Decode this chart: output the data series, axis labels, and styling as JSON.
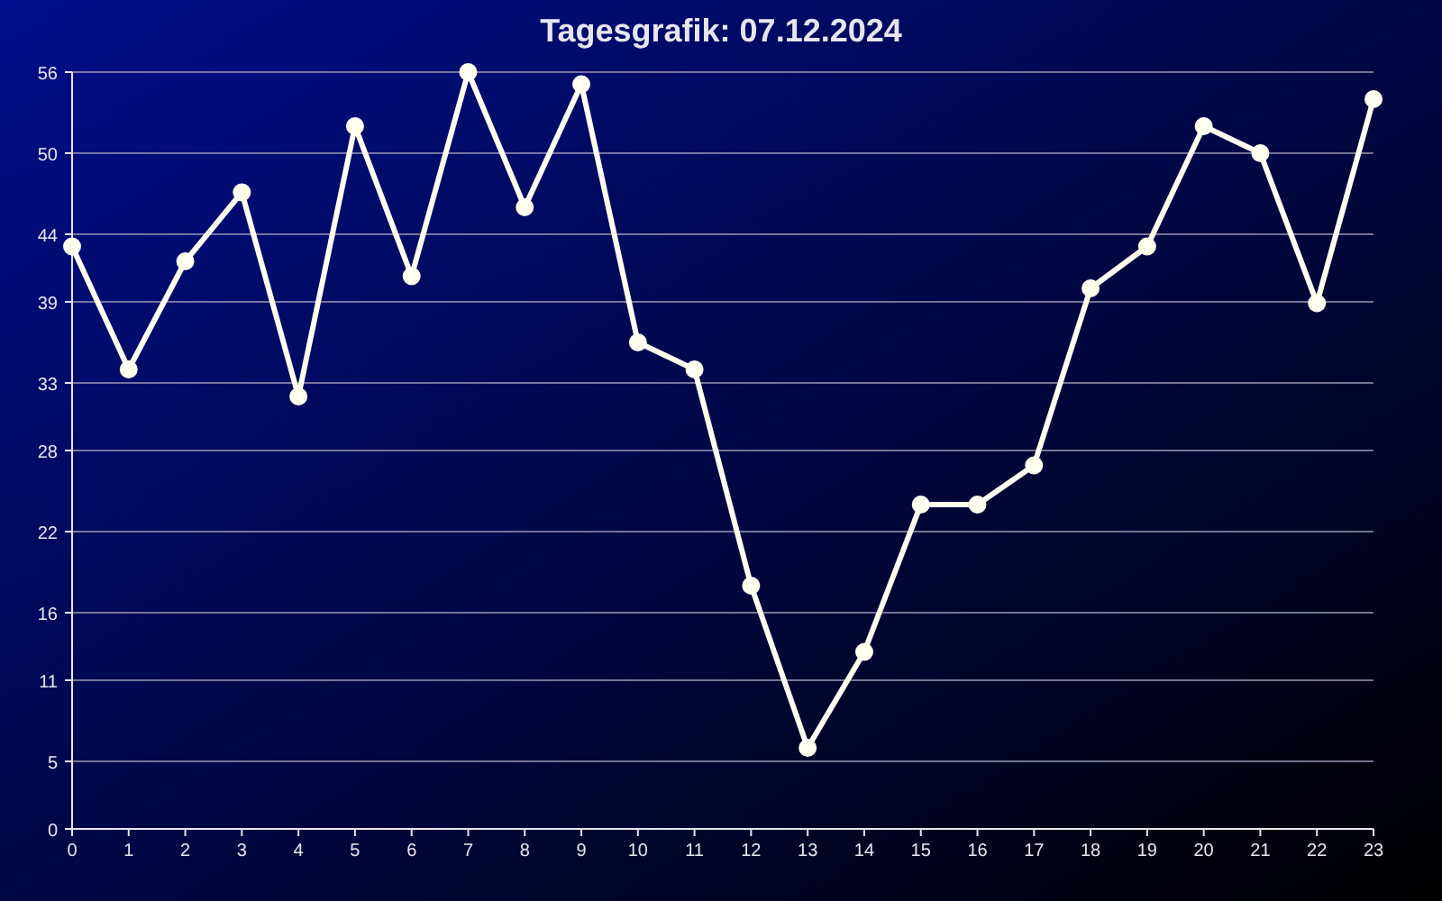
{
  "chart_data": {
    "type": "line",
    "title": "Tagesgrafik: 07.12.2024",
    "x": [
      0,
      1,
      2,
      3,
      4,
      5,
      6,
      7,
      8,
      9,
      10,
      11,
      12,
      13,
      14,
      15,
      16,
      17,
      18,
      19,
      20,
      21,
      22,
      23
    ],
    "series": [
      {
        "color": "#fffff0",
        "values": [
          43.1,
          34,
          42,
          47.1,
          32,
          52,
          40.9,
          56,
          46,
          55.1,
          36,
          34,
          18,
          6,
          13.1,
          24,
          24,
          26.9,
          40,
          43.1,
          52,
          50,
          38.9,
          54
        ]
      }
    ],
    "xlim": [
      0,
      23
    ],
    "xticks": [
      0,
      1,
      2,
      3,
      4,
      5,
      6,
      7,
      8,
      9,
      10,
      11,
      12,
      13,
      14,
      15,
      16,
      17,
      18,
      19,
      20,
      21,
      22,
      23
    ],
    "ylim": [
      0,
      56
    ],
    "yticks": [
      0,
      5,
      11,
      16,
      22,
      28,
      33,
      39,
      44,
      50,
      56
    ],
    "grid": "y",
    "marker": "circle",
    "line_style": "solid"
  }
}
